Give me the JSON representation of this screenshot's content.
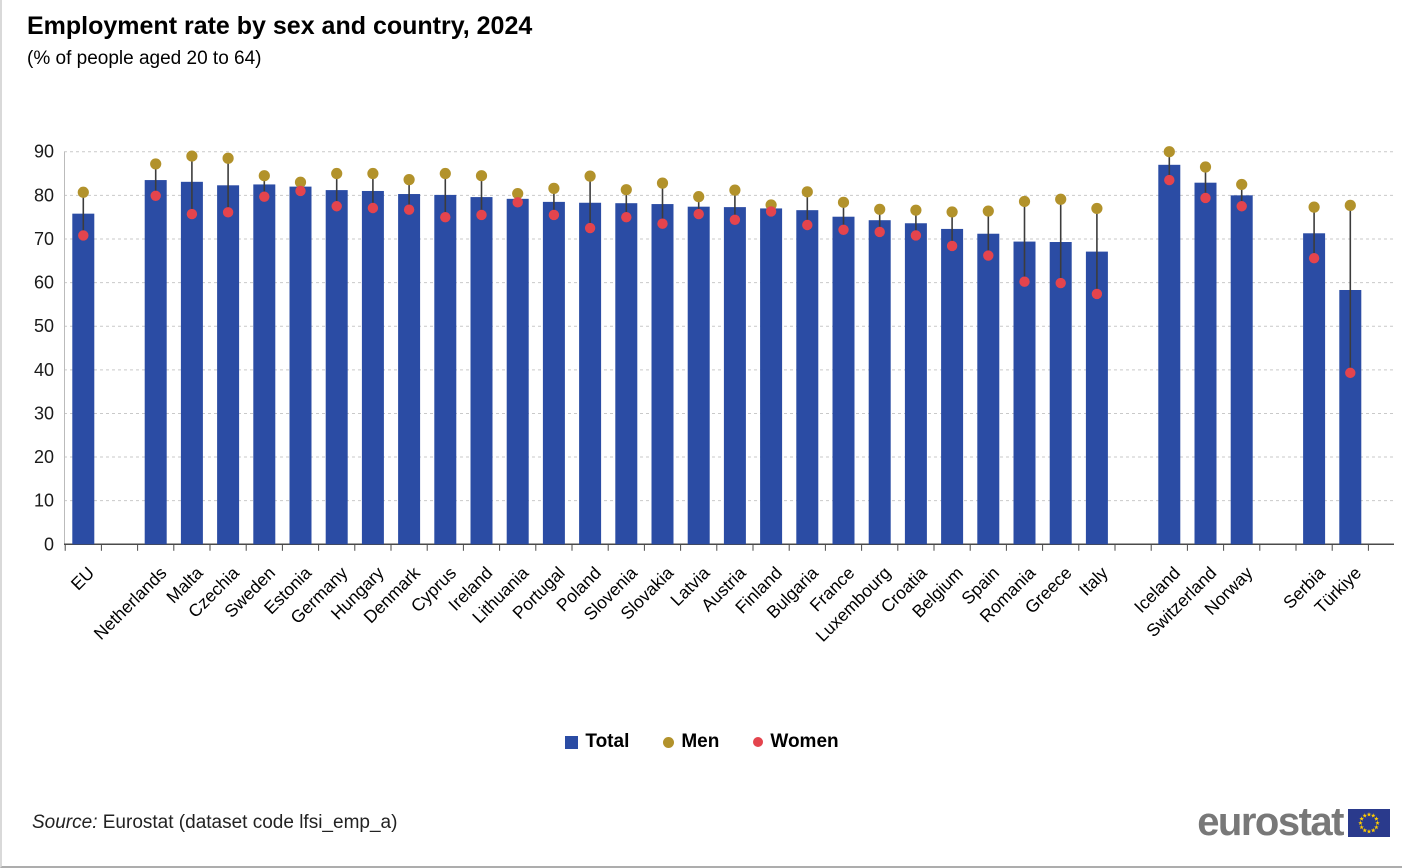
{
  "page": {
    "title": "Employment rate by sex and country, 2024",
    "subtitle": "(% of people aged 20 to 64)"
  },
  "chart_data": {
    "type": "bar",
    "title": "Employment rate by sex and country, 2024",
    "subtitle": "(% of people aged 20 to 64)",
    "unit": "percent",
    "ylim": [
      0,
      90
    ],
    "yticks": [
      0,
      10,
      20,
      30,
      40,
      50,
      60,
      70,
      80,
      90
    ],
    "grid": "horizontal-dashed",
    "legend_position": "bottom-center",
    "series": [
      {
        "name": "Total",
        "type": "bar",
        "color": "#2B4CA4"
      },
      {
        "name": "Men",
        "type": "point",
        "color": "#B2922B"
      },
      {
        "name": "Women",
        "type": "point",
        "color": "#E4444D"
      }
    ],
    "categories": [
      {
        "name": "EU",
        "group": "eu",
        "total": 75.8,
        "men": 80.7,
        "women": 70.8
      },
      {
        "name": "Netherlands",
        "group": "members",
        "total": 83.5,
        "men": 87.2,
        "women": 79.9
      },
      {
        "name": "Malta",
        "group": "members",
        "total": 83.1,
        "men": 89.0,
        "women": 75.7
      },
      {
        "name": "Czechia",
        "group": "members",
        "total": 82.3,
        "men": 88.5,
        "women": 76.1
      },
      {
        "name": "Sweden",
        "group": "members",
        "total": 82.5,
        "men": 84.5,
        "women": 79.7
      },
      {
        "name": "Estonia",
        "group": "members",
        "total": 82.0,
        "men": 83.0,
        "women": 81.0
      },
      {
        "name": "Germany",
        "group": "members",
        "total": 81.2,
        "men": 85.0,
        "women": 77.5
      },
      {
        "name": "Hungary",
        "group": "members",
        "total": 81.0,
        "men": 85.0,
        "women": 77.1
      },
      {
        "name": "Denmark",
        "group": "members",
        "total": 80.3,
        "men": 83.6,
        "women": 76.7
      },
      {
        "name": "Cyprus",
        "group": "members",
        "total": 80.1,
        "men": 85.0,
        "women": 75.0
      },
      {
        "name": "Ireland",
        "group": "members",
        "total": 79.6,
        "men": 84.5,
        "women": 75.5
      },
      {
        "name": "Lithuania",
        "group": "members",
        "total": 79.2,
        "men": 80.4,
        "women": 78.4
      },
      {
        "name": "Portugal",
        "group": "members",
        "total": 78.5,
        "men": 81.6,
        "women": 75.5
      },
      {
        "name": "Poland",
        "group": "members",
        "total": 78.3,
        "men": 84.4,
        "women": 72.5
      },
      {
        "name": "Slovenia",
        "group": "members",
        "total": 78.2,
        "men": 81.3,
        "women": 75.0
      },
      {
        "name": "Slovakia",
        "group": "members",
        "total": 78.0,
        "men": 82.8,
        "women": 73.5
      },
      {
        "name": "Latvia",
        "group": "members",
        "total": 77.4,
        "men": 79.7,
        "women": 75.7
      },
      {
        "name": "Austria",
        "group": "members",
        "total": 77.3,
        "men": 81.2,
        "women": 74.4
      },
      {
        "name": "Finland",
        "group": "members",
        "total": 77.0,
        "men": 77.8,
        "women": 76.3
      },
      {
        "name": "Bulgaria",
        "group": "members",
        "total": 76.6,
        "men": 80.8,
        "women": 73.2
      },
      {
        "name": "France",
        "group": "members",
        "total": 75.1,
        "men": 78.4,
        "women": 72.1
      },
      {
        "name": "Luxembourg",
        "group": "members",
        "total": 74.3,
        "men": 76.8,
        "women": 71.6
      },
      {
        "name": "Croatia",
        "group": "members",
        "total": 73.6,
        "men": 76.6,
        "women": 70.8
      },
      {
        "name": "Belgium",
        "group": "members",
        "total": 72.3,
        "men": 76.2,
        "women": 68.4
      },
      {
        "name": "Spain",
        "group": "members",
        "total": 71.2,
        "men": 76.4,
        "women": 66.2
      },
      {
        "name": "Romania",
        "group": "members",
        "total": 69.4,
        "men": 78.6,
        "women": 60.2
      },
      {
        "name": "Greece",
        "group": "members",
        "total": 69.3,
        "men": 79.1,
        "women": 59.9
      },
      {
        "name": "Italy",
        "group": "members",
        "total": 67.1,
        "men": 77.0,
        "women": 57.4
      },
      {
        "name": "Iceland",
        "group": "efta",
        "total": 87.0,
        "men": 90.0,
        "women": 83.5
      },
      {
        "name": "Switzerland",
        "group": "efta",
        "total": 82.9,
        "men": 86.5,
        "women": 79.4
      },
      {
        "name": "Norway",
        "group": "efta",
        "total": 80.0,
        "men": 82.5,
        "women": 77.5
      },
      {
        "name": "Serbia",
        "group": "candidates",
        "total": 71.3,
        "men": 77.3,
        "women": 65.6
      },
      {
        "name": "Türkiye",
        "group": "candidates",
        "total": 58.3,
        "men": 77.7,
        "women": 39.3
      }
    ]
  },
  "legend": {
    "items": [
      {
        "label": "Total",
        "shape": "square",
        "color": "#2B4CA4"
      },
      {
        "label": "Men",
        "shape": "circle",
        "color": "#B2922B"
      },
      {
        "label": "Women",
        "shape": "circle",
        "color": "#E4444D"
      }
    ]
  },
  "footer": {
    "source_label": "Source:",
    "source_text": " Eurostat (dataset code lfsi_emp_a)",
    "logo_text": "eurostat"
  },
  "colors": {
    "bar": "#2B4CA4",
    "men": "#B2922B",
    "women": "#E4444D",
    "grid": "#C9C9C9",
    "axis": "#4A4A4A",
    "whisker": "#3C3C3C",
    "tick_label": "#1A1A1A",
    "flag_blue": "#2A3A8C",
    "flag_stars": "#FFCC00"
  }
}
